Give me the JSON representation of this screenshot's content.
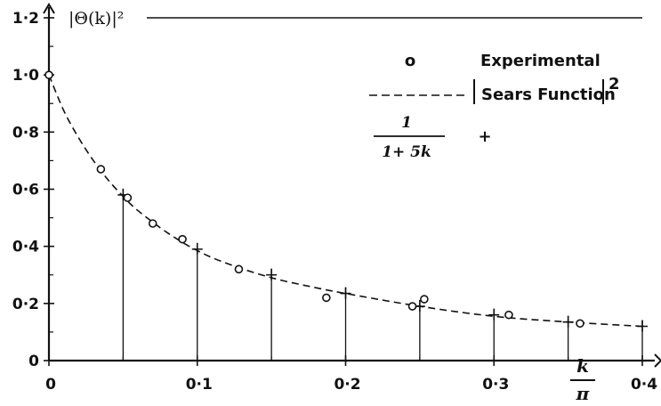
{
  "chart_data": {
    "type": "line",
    "ylabel": "|Θ(k)|²",
    "xlabel_numerator": "k",
    "xlabel_denominator": "π",
    "xlim": [
      0,
      0.4
    ],
    "ylim": [
      0,
      1.2
    ],
    "x_ticks": [
      "0",
      "0·1",
      "0·2",
      "0·3",
      "0·4"
    ],
    "y_ticks": [
      "0",
      "0·2",
      "0·4",
      "0·6",
      "0·8",
      "1·0",
      "1·2"
    ],
    "legend": {
      "experimental_marker": "o",
      "experimental_label": "Experimental",
      "sears_label_text": "Sears  Function",
      "sears_exponent": "2",
      "approx_numerator": "1",
      "approx_denominator": "1+ 5k",
      "approx_marker": "+"
    },
    "series": [
      {
        "name": "Experimental",
        "style": "circle",
        "x": [
          0.0,
          0.035,
          0.053,
          0.07,
          0.09,
          0.128,
          0.187,
          0.245,
          0.253,
          0.31,
          0.358
        ],
        "y": [
          1.0,
          0.67,
          0.57,
          0.48,
          0.425,
          0.32,
          0.22,
          0.19,
          0.215,
          0.16,
          0.13
        ]
      },
      {
        "name": "Sears Function",
        "style": "dashed",
        "x": [
          0.0,
          0.01,
          0.02,
          0.03,
          0.04,
          0.05,
          0.06,
          0.08,
          0.1,
          0.12,
          0.15,
          0.18,
          0.2,
          0.25,
          0.3,
          0.35,
          0.4
        ],
        "y": [
          1.0,
          0.875,
          0.78,
          0.7,
          0.632,
          0.575,
          0.525,
          0.447,
          0.385,
          0.34,
          0.29,
          0.255,
          0.235,
          0.19,
          0.155,
          0.135,
          0.12
        ]
      },
      {
        "name": "1/(1+5k)",
        "style": "plus",
        "x": [
          0.05,
          0.1,
          0.15,
          0.2,
          0.25,
          0.3,
          0.35,
          0.4
        ],
        "y": [
          0.58,
          0.39,
          0.3,
          0.235,
          0.19,
          0.16,
          0.135,
          0.12
        ]
      }
    ]
  }
}
